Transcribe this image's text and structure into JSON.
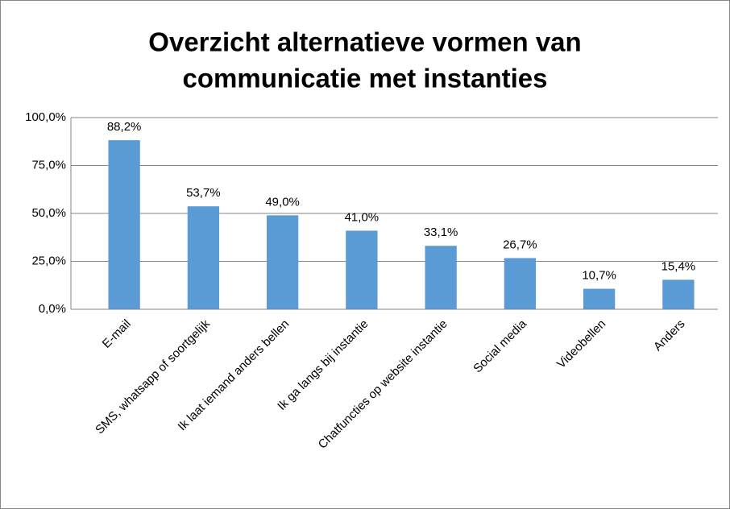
{
  "chart_data": {
    "type": "bar",
    "title": [
      "Overzicht alternatieve vormen van",
      "communicatie met instanties"
    ],
    "categories": [
      "E-mail",
      "SMS, whatsapp of soortgelijk",
      "Ik laat iemand anders bellen",
      "Ik ga langs bij instantie",
      "Chatfuncties op website  instantie",
      "Social media",
      "Videobellen",
      "Anders"
    ],
    "values": [
      88.2,
      53.7,
      49.0,
      41.0,
      33.1,
      26.7,
      10.7,
      15.4
    ],
    "value_labels": [
      "88,2%",
      "53,7%",
      "49,0%",
      "41,0%",
      "33,1%",
      "26,7%",
      "10,7%",
      "15,4%"
    ],
    "color": "#5b9bd5",
    "ylim": [
      0,
      100
    ],
    "yticks": [
      {
        "value": 0,
        "label": "0,0%"
      },
      {
        "value": 25,
        "label": "25,0%"
      },
      {
        "value": 50,
        "label": "50,0%"
      },
      {
        "value": 75,
        "label": "75,0%"
      },
      {
        "value": 100,
        "label": "100,0%"
      }
    ],
    "grid": true
  }
}
